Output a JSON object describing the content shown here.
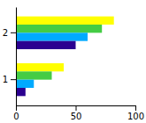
{
  "chart_data": {
    "type": "bar",
    "orientation": "horizontal",
    "categories": [
      "1",
      "2"
    ],
    "series": [
      {
        "color": "#FFFF00",
        "values": [
          40,
          82
        ]
      },
      {
        "color": "#44CC44",
        "values": [
          30,
          72
        ]
      },
      {
        "color": "#00AAFF",
        "values": [
          15,
          60
        ]
      },
      {
        "color": "#2B0090",
        "values": [
          8,
          50
        ]
      }
    ],
    "xlim": [
      0,
      100
    ],
    "xticks": [
      0,
      50,
      100
    ],
    "grid": false
  }
}
